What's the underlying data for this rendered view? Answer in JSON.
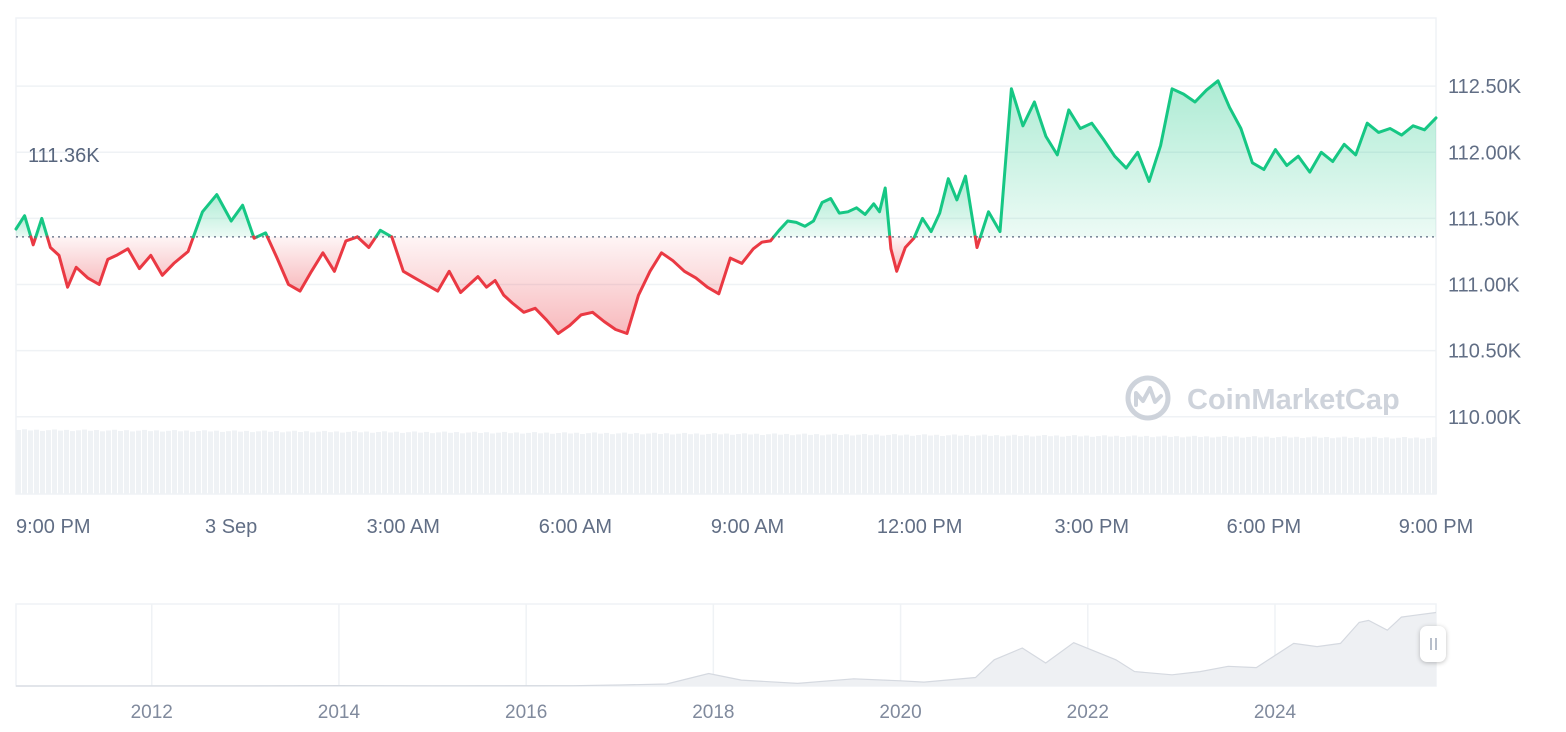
{
  "chart_data": [
    {
      "type": "area",
      "description_of_series": "price",
      "reference_value": 111.36,
      "reference_label": "111.36K",
      "y_unit": "K",
      "ylim": [
        109.9,
        113.0
      ],
      "y_ticks": [
        110.0,
        110.5,
        111.0,
        111.5,
        112.0,
        112.5
      ],
      "y_tick_labels": [
        "110.00K",
        "110.50K",
        "111.00K",
        "111.50K",
        "112.00K",
        "112.50K"
      ],
      "x_tick_labels": [
        "9:00 PM",
        "3 Sep",
        "3:00 AM",
        "6:00 AM",
        "9:00 AM",
        "12:00 PM",
        "3:00 PM",
        "6:00 PM",
        "9:00 PM"
      ],
      "x_range_hours": [
        -0.75,
        24.0
      ],
      "x_ticks_hours": [
        0,
        3,
        6,
        9,
        12,
        15,
        18,
        21,
        24
      ],
      "colors": {
        "above": "#16c784",
        "below": "#ea3943"
      },
      "x_hours": [
        -0.75,
        -0.6,
        -0.45,
        -0.3,
        -0.15,
        0.0,
        0.15,
        0.3,
        0.5,
        0.7,
        0.85,
        1.0,
        1.2,
        1.4,
        1.6,
        1.8,
        2.0,
        2.25,
        2.5,
        2.75,
        3.0,
        3.2,
        3.4,
        3.6,
        3.8,
        4.0,
        4.2,
        4.4,
        4.6,
        4.8,
        5.0,
        5.2,
        5.4,
        5.6,
        5.8,
        6.0,
        6.2,
        6.4,
        6.6,
        6.8,
        7.0,
        7.15,
        7.3,
        7.45,
        7.6,
        7.75,
        7.9,
        8.1,
        8.3,
        8.5,
        8.7,
        8.9,
        9.1,
        9.3,
        9.5,
        9.7,
        9.9,
        10.1,
        10.3,
        10.5,
        10.7,
        10.9,
        11.1,
        11.3,
        11.5,
        11.7,
        11.9,
        12.1,
        12.25,
        12.4,
        12.55,
        12.7,
        12.85,
        13.0,
        13.15,
        13.3,
        13.45,
        13.6,
        13.75,
        13.9,
        14.05,
        14.2,
        14.3,
        14.4,
        14.5,
        14.6,
        14.75,
        14.9,
        15.05,
        15.2,
        15.35,
        15.5,
        15.65,
        15.8,
        16.0,
        16.2,
        16.4,
        16.6,
        16.8,
        17.0,
        17.2,
        17.4,
        17.6,
        17.8,
        18.0,
        18.2,
        18.4,
        18.6,
        18.8,
        19.0,
        19.2,
        19.4,
        19.6,
        19.8,
        20.0,
        20.2,
        20.4,
        20.6,
        20.8,
        21.0,
        21.2,
        21.4,
        21.6,
        21.8,
        22.0,
        22.2,
        22.4,
        22.6,
        22.8,
        23.0,
        23.2,
        23.4,
        23.6,
        23.8,
        24.0
      ],
      "values": [
        111.42,
        111.52,
        111.3,
        111.5,
        111.28,
        111.22,
        110.98,
        111.13,
        111.05,
        111.0,
        111.19,
        111.22,
        111.27,
        111.12,
        111.22,
        111.07,
        111.16,
        111.25,
        111.55,
        111.68,
        111.48,
        111.6,
        111.35,
        111.39,
        111.2,
        111.0,
        110.95,
        111.1,
        111.24,
        111.1,
        111.33,
        111.36,
        111.28,
        111.41,
        111.36,
        111.1,
        111.05,
        111.0,
        110.95,
        111.1,
        110.94,
        111.0,
        111.06,
        110.98,
        111.03,
        110.92,
        110.86,
        110.79,
        110.82,
        110.73,
        110.63,
        110.69,
        110.77,
        110.79,
        110.72,
        110.66,
        110.63,
        110.92,
        111.1,
        111.24,
        111.18,
        111.1,
        111.05,
        110.98,
        110.93,
        111.2,
        111.16,
        111.27,
        111.32,
        111.33,
        111.41,
        111.48,
        111.47,
        111.44,
        111.48,
        111.62,
        111.65,
        111.54,
        111.55,
        111.58,
        111.53,
        111.61,
        111.55,
        111.73,
        111.27,
        111.1,
        111.28,
        111.35,
        111.5,
        111.4,
        111.54,
        111.8,
        111.64,
        111.82,
        111.28,
        111.55,
        111.4,
        112.48,
        112.2,
        112.38,
        112.12,
        111.98,
        112.32,
        112.18,
        112.22,
        112.1,
        111.97,
        111.88,
        112.0,
        111.78,
        112.05,
        112.48,
        112.44,
        112.38,
        112.47,
        112.54,
        112.34,
        112.18,
        111.92,
        111.87,
        112.02,
        111.9,
        111.97,
        111.85,
        112.0,
        111.93,
        112.06,
        111.98,
        112.22,
        112.15,
        112.18,
        112.13,
        112.2,
        112.17,
        112.26
      ]
    },
    {
      "type": "area",
      "description_of_series": "navigator history",
      "x_tick_labels": [
        "2012",
        "2014",
        "2016",
        "2018",
        "2020",
        "2022",
        "2024"
      ],
      "x_ticks": [
        2012,
        2014,
        2016,
        2018,
        2020,
        2022,
        2024
      ],
      "x_range": [
        2010.55,
        2025.72
      ],
      "ylim": [
        0,
        125
      ],
      "x": [
        2010.55,
        2013.0,
        2014.0,
        2015.0,
        2016.5,
        2017.0,
        2017.5,
        2017.95,
        2018.3,
        2018.9,
        2019.5,
        2020.0,
        2020.25,
        2020.8,
        2021.0,
        2021.3,
        2021.55,
        2021.85,
        2022.3,
        2022.5,
        2022.9,
        2023.2,
        2023.5,
        2023.8,
        2024.2,
        2024.45,
        2024.7,
        2024.9,
        2025.0,
        2025.2,
        2025.35,
        2025.5,
        2025.72
      ],
      "values": [
        0,
        0.1,
        0.6,
        0.3,
        0.5,
        1.5,
        3,
        19,
        9,
        4,
        11,
        8,
        6,
        13,
        40,
        58,
        35,
        66,
        40,
        22,
        17,
        22,
        30,
        28,
        65,
        60,
        65,
        97,
        100,
        85,
        105,
        108,
        112
      ],
      "volume_strip_color": "#eff2f5"
    }
  ],
  "watermark": {
    "text": "CoinMarketCap",
    "icon": "coinmarketcap-logo-icon"
  },
  "navigator_handle": {
    "icon": "pause-drag-icon"
  }
}
